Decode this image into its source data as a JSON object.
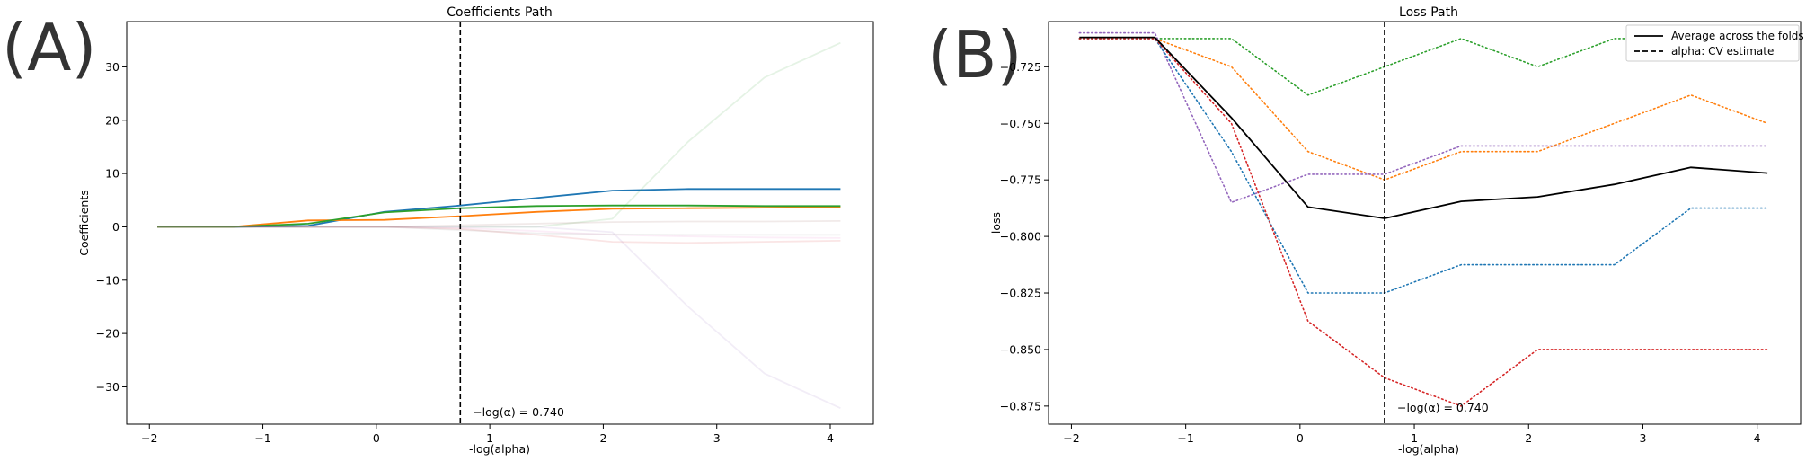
{
  "panels": [
    {
      "letter": "(A)",
      "chart_data": {
        "type": "line",
        "title": "Coefficients Path",
        "xlabel": "-log(alpha)",
        "ylabel": "Coefficients",
        "xlim": [
          -2.2,
          4.38
        ],
        "ylim": [
          -37,
          38.5
        ],
        "xticks": [
          -2,
          -1,
          0,
          1,
          2,
          3,
          4
        ],
        "xtick_labels": [
          "−2",
          "−1",
          "0",
          "1",
          "2",
          "3",
          "4"
        ],
        "yticks": [
          -30,
          -20,
          -10,
          0,
          10,
          20,
          30
        ],
        "ytick_labels": [
          "−30",
          "−20",
          "−10",
          "0",
          "10",
          "20",
          "30"
        ],
        "grid": false,
        "x": [
          -1.93,
          -1.27,
          -0.6,
          0.07,
          0.74,
          1.41,
          2.08,
          2.75,
          3.42,
          4.09
        ],
        "series": [
          {
            "values": [
              0,
              0,
              0.2,
              2.8,
              4.0,
              5.4,
              6.8,
              7.1,
              7.1,
              7.1
            ],
            "color": "#1f77b4",
            "opacity": 1.0
          },
          {
            "values": [
              0,
              0,
              1.2,
              1.3,
              2.0,
              2.8,
              3.4,
              3.5,
              3.6,
              3.7
            ],
            "color": "#ff7f0e",
            "opacity": 1.0
          },
          {
            "values": [
              0,
              0,
              0.6,
              2.7,
              3.5,
              3.9,
              4.0,
              4.0,
              3.9,
              3.9
            ],
            "color": "#2ca02c",
            "opacity": 1.0
          },
          {
            "values": [
              0,
              0,
              0,
              0,
              0,
              0,
              1.5,
              16,
              28,
              34.5
            ],
            "color": "#2ca02c",
            "opacity": 0.12
          },
          {
            "values": [
              0,
              0,
              0,
              0,
              0,
              0,
              -1,
              -15,
              -27.5,
              -34
            ],
            "color": "#9467bd",
            "opacity": 0.12
          },
          {
            "values": [
              0,
              0,
              0,
              0,
              -0.4,
              -1.5,
              -2.8,
              -3.0,
              -2.8,
              -2.6
            ],
            "color": "#d62728",
            "opacity": 0.12
          },
          {
            "values": [
              0,
              0,
              0,
              0,
              -0.2,
              -0.8,
              -1.5,
              -1.8,
              -2.0,
              -2.1
            ],
            "color": "#e377c2",
            "opacity": 0.12
          },
          {
            "values": [
              0,
              0,
              0,
              0,
              0.3,
              0.6,
              0.9,
              1.0,
              1.0,
              1.1
            ],
            "color": "#8c564b",
            "opacity": 0.12
          },
          {
            "values": [
              0,
              0,
              0,
              0,
              -0.6,
              -1.2,
              -1.4,
              -1.5,
              -1.5,
              -1.5
            ],
            "color": "#7f7f7f",
            "opacity": 0.12
          }
        ],
        "vline": {
          "x": 0.74
        },
        "annotation": {
          "text": "−log(α) = 0.740",
          "x": 0.85,
          "y": -35.5
        }
      }
    },
    {
      "letter": "(B)",
      "chart_data": {
        "type": "line",
        "title": "Loss Path",
        "xlabel": "-log(alpha)",
        "ylabel": "loss",
        "xlim": [
          -2.2,
          4.38
        ],
        "ylim": [
          -0.883,
          -0.705
        ],
        "xticks": [
          -2,
          -1,
          0,
          1,
          2,
          3,
          4
        ],
        "xtick_labels": [
          "−2",
          "−1",
          "0",
          "1",
          "2",
          "3",
          "4"
        ],
        "yticks": [
          -0.725,
          -0.75,
          -0.775,
          -0.8,
          -0.825,
          -0.85,
          -0.875
        ],
        "ytick_labels": [
          "−0.725",
          "−0.750",
          "−0.775",
          "−0.800",
          "−0.825",
          "−0.850",
          "−0.875"
        ],
        "grid": false,
        "x": [
          -1.93,
          -1.27,
          -0.6,
          0.07,
          0.74,
          1.41,
          2.08,
          2.75,
          3.42,
          4.09
        ],
        "series": [
          {
            "values": [
              -0.7125,
              -0.7125,
              -0.7125,
              -0.7375,
              -0.725,
              -0.7125,
              -0.725,
              -0.7125,
              -0.7125,
              -0.7125
            ],
            "color": "#2ca02c",
            "style": "dotted"
          },
          {
            "values": [
              -0.7125,
              -0.7125,
              -0.725,
              -0.7625,
              -0.775,
              -0.7625,
              -0.7625,
              -0.75,
              -0.7375,
              -0.75
            ],
            "color": "#ff7f0e",
            "style": "dotted"
          },
          {
            "values": [
              -0.71,
              -0.71,
              -0.785,
              -0.7725,
              -0.7725,
              -0.76,
              -0.76,
              -0.76,
              -0.76,
              -0.76
            ],
            "color": "#9467bd",
            "style": "dotted"
          },
          {
            "values": [
              -0.7125,
              -0.7125,
              -0.7625,
              -0.825,
              -0.825,
              -0.8125,
              -0.8125,
              -0.8125,
              -0.7875,
              -0.7875
            ],
            "color": "#1f77b4",
            "style": "dotted"
          },
          {
            "values": [
              -0.7125,
              -0.7125,
              -0.75,
              -0.8375,
              -0.8625,
              -0.875,
              -0.85,
              -0.85,
              -0.85,
              -0.85
            ],
            "color": "#d62728",
            "style": "dotted"
          },
          {
            "name": "Average across the folds",
            "values": [
              -0.712,
              -0.712,
              -0.7475,
              -0.787,
              -0.792,
              -0.7845,
              -0.7825,
              -0.777,
              -0.7695,
              -0.772
            ],
            "color": "#000000",
            "style": "solid"
          }
        ],
        "vline": {
          "x": 0.74,
          "name": "alpha: CV estimate"
        },
        "annotation": {
          "text": "−log(α) = 0.740",
          "x": 0.85,
          "y": -0.8775
        },
        "legend": "top-right"
      }
    }
  ]
}
